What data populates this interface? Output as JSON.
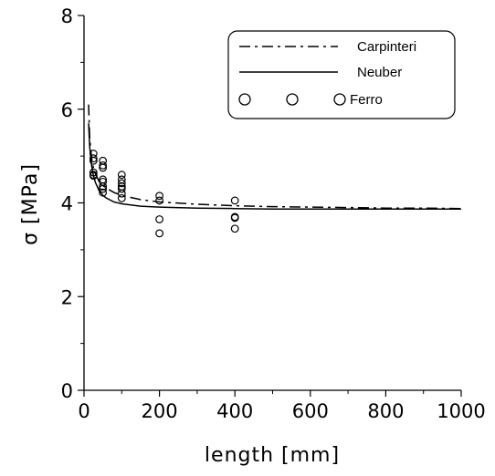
{
  "chart_data": {
    "type": "scatter",
    "xlabel": "length [mm]",
    "ylabel": "σ  [MPa]",
    "xlim": [
      0,
      1000
    ],
    "ylim": [
      0,
      8
    ],
    "x_ticks": [
      "0",
      "200",
      "400",
      "600",
      "800",
      "1000"
    ],
    "x_tick_values": [
      0,
      200,
      400,
      600,
      800,
      1000
    ],
    "y_ticks": [
      "0",
      "2",
      "4",
      "6",
      "8"
    ],
    "y_tick_values": [
      0,
      2,
      4,
      6,
      8
    ],
    "grid": false,
    "legend_position": "top-right",
    "series": [
      {
        "name": "Carpinteri",
        "style": "dash-dot",
        "color": "#000000",
        "x": [
          12,
          15,
          20,
          25,
          30,
          40,
          50,
          60,
          80,
          100,
          150,
          200,
          300,
          400,
          500,
          600,
          700,
          800,
          900,
          1000
        ],
        "y": [
          6.1,
          5.4,
          4.95,
          4.75,
          4.62,
          4.46,
          4.37,
          4.31,
          4.22,
          4.16,
          4.07,
          4.02,
          3.97,
          3.94,
          3.92,
          3.91,
          3.9,
          3.89,
          3.89,
          3.88
        ]
      },
      {
        "name": "Neuber",
        "style": "solid",
        "color": "#000000",
        "x": [
          12,
          15,
          20,
          25,
          30,
          40,
          50,
          60,
          80,
          100,
          150,
          200,
          300,
          400,
          500,
          600,
          700,
          800,
          900,
          1000
        ],
        "y": [
          5.7,
          5.2,
          4.8,
          4.58,
          4.44,
          4.26,
          4.16,
          4.1,
          4.02,
          3.98,
          3.93,
          3.91,
          3.89,
          3.88,
          3.87,
          3.87,
          3.87,
          3.87,
          3.87,
          3.87
        ]
      },
      {
        "name": "Ferro",
        "style": "open-circle",
        "color": "#000000",
        "x": [
          25,
          25,
          25,
          25,
          25,
          25,
          50,
          50,
          50,
          50,
          50,
          50,
          50,
          50,
          100,
          100,
          100,
          100,
          100,
          100,
          100,
          200,
          200,
          200,
          200,
          400,
          400,
          400,
          400
        ],
        "y": [
          5.05,
          4.95,
          4.9,
          4.65,
          4.6,
          4.58,
          4.9,
          4.8,
          4.75,
          4.5,
          4.45,
          4.35,
          4.3,
          4.22,
          4.6,
          4.5,
          4.42,
          4.35,
          4.3,
          4.2,
          4.1,
          4.15,
          4.05,
          3.65,
          3.35,
          4.05,
          3.7,
          3.68,
          3.45
        ]
      }
    ]
  }
}
